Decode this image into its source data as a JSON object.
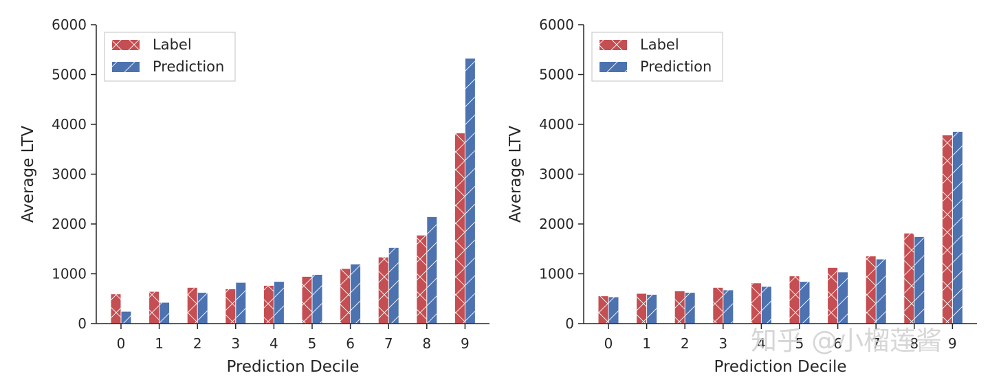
{
  "colors": {
    "label": "#c44e52",
    "prediction": "#4c72b0",
    "axis": "#262626",
    "hatch": "#ffffff"
  },
  "watermark": "知乎 @小榴莲酱",
  "chart_data": [
    {
      "type": "bar",
      "xlabel": "Prediction Decile",
      "ylabel": "Average LTV",
      "ylim": [
        0,
        6000
      ],
      "yticks": [
        0,
        1000,
        2000,
        3000,
        4000,
        5000,
        6000
      ],
      "categories": [
        "0",
        "1",
        "2",
        "3",
        "4",
        "5",
        "6",
        "7",
        "8",
        "9"
      ],
      "legend": {
        "position": "top-left"
      },
      "series": [
        {
          "name": "Label",
          "values": [
            590,
            640,
            720,
            690,
            760,
            940,
            1100,
            1330,
            1770,
            3820
          ]
        },
        {
          "name": "Prediction",
          "values": [
            240,
            420,
            620,
            820,
            840,
            980,
            1190,
            1520,
            2140,
            5320
          ]
        }
      ]
    },
    {
      "type": "bar",
      "xlabel": "Prediction Decile",
      "ylabel": "Average LTV",
      "ylim": [
        0,
        6000
      ],
      "yticks": [
        0,
        1000,
        2000,
        3000,
        4000,
        5000,
        6000
      ],
      "categories": [
        "0",
        "1",
        "2",
        "3",
        "4",
        "5",
        "6",
        "7",
        "8",
        "9"
      ],
      "legend": {
        "position": "top-left"
      },
      "series": [
        {
          "name": "Label",
          "values": [
            550,
            600,
            650,
            720,
            810,
            950,
            1120,
            1350,
            1810,
            3780
          ]
        },
        {
          "name": "Prediction",
          "values": [
            530,
            580,
            620,
            670,
            740,
            840,
            1030,
            1290,
            1740,
            3850
          ]
        }
      ]
    }
  ]
}
